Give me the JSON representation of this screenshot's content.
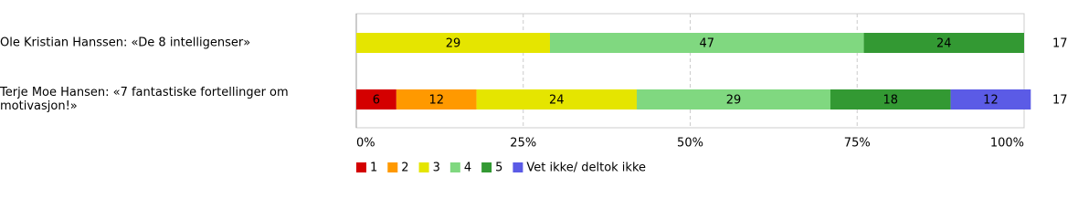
{
  "chart_data": {
    "type": "stacked-bar-horizontal",
    "categories": [
      "Ole Kristian Hanssen: «De 8 intelligenser»",
      "Terje Moe Hansen: «7 fantastiske fortellinger om motivasjon!»"
    ],
    "series": [
      {
        "name": "1",
        "color": "#d40000",
        "values": [
          null,
          6
        ]
      },
      {
        "name": "2",
        "color": "#ff9900",
        "values": [
          null,
          12
        ]
      },
      {
        "name": "3",
        "color": "#e5e500",
        "values": [
          29,
          24
        ]
      },
      {
        "name": "4",
        "color": "#80d880",
        "values": [
          47,
          29
        ]
      },
      {
        "name": "5",
        "color": "#339933",
        "values": [
          24,
          18
        ]
      },
      {
        "name": "Vet ikke/ deltok ikke",
        "color": "#5b5be6",
        "values": [
          null,
          12
        ]
      }
    ],
    "counts": [
      17,
      17
    ],
    "xlim": [
      0,
      100
    ],
    "xticks": [
      {
        "value": 0,
        "label": "0%"
      },
      {
        "value": 25,
        "label": "25%"
      },
      {
        "value": 50,
        "label": "50%"
      },
      {
        "value": 75,
        "label": "75%"
      },
      {
        "value": 100,
        "label": "100%"
      }
    ],
    "grid": true
  }
}
